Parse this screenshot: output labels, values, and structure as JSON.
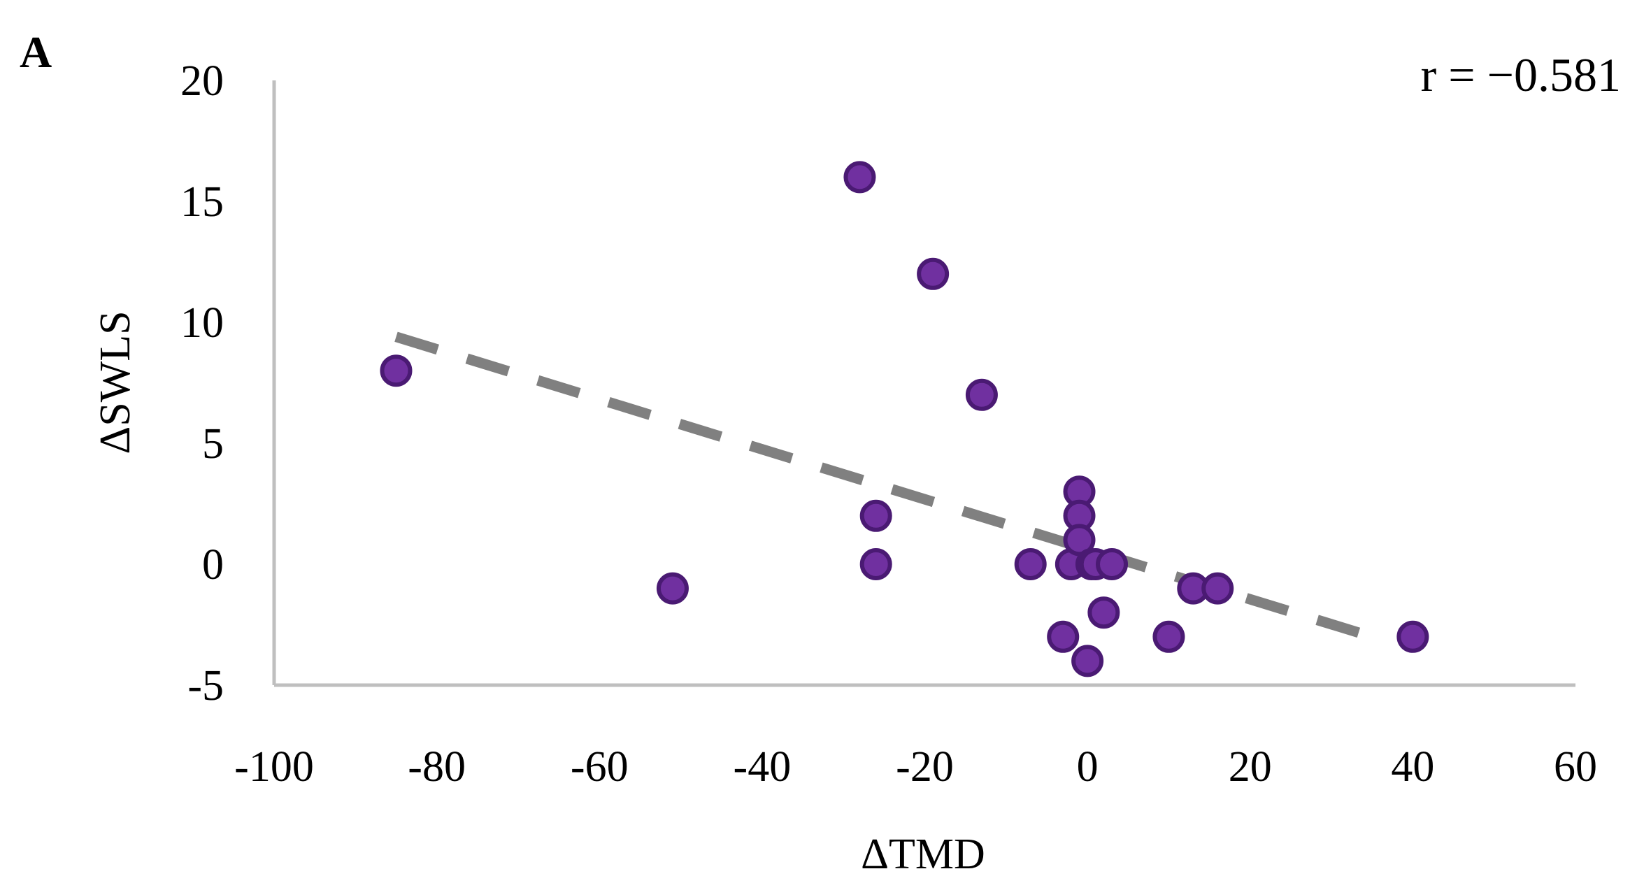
{
  "panel_label": "A",
  "annotation": "r = −0.581",
  "colors": {
    "point_fill": "#7030a0",
    "point_stroke": "#4a1a73",
    "trendline": "#808080",
    "axis": "#bfbfbf"
  },
  "chart_data": {
    "type": "scatter",
    "title": "",
    "xlabel": "ΔTMD",
    "ylabel": "ΔSWLS",
    "xlim": [
      -100,
      60
    ],
    "ylim": [
      -5,
      20
    ],
    "x_ticks": [
      -100,
      -80,
      -60,
      -40,
      -20,
      0,
      20,
      40,
      60
    ],
    "x_tick_labels": [
      "-100",
      "-80",
      "-60",
      "-40",
      "-20",
      "0",
      "20",
      "40",
      "60"
    ],
    "y_ticks": [
      -5,
      0,
      5,
      10,
      15,
      20
    ],
    "y_tick_labels": [
      "-5",
      "0",
      "5",
      "10",
      "15",
      "20"
    ],
    "grid": false,
    "series": [
      {
        "points": [
          {
            "x": -85,
            "y": 8
          },
          {
            "x": -51,
            "y": -1
          },
          {
            "x": -28,
            "y": 16
          },
          {
            "x": -26,
            "y": 2
          },
          {
            "x": -26,
            "y": 0
          },
          {
            "x": -19,
            "y": 12
          },
          {
            "x": -13,
            "y": 7
          },
          {
            "x": -7,
            "y": 0
          },
          {
            "x": -3,
            "y": -3
          },
          {
            "x": -2,
            "y": 0
          },
          {
            "x": -1,
            "y": 3
          },
          {
            "x": -1,
            "y": 2
          },
          {
            "x": -1,
            "y": 1
          },
          {
            "x": 0,
            "y": -4
          },
          {
            "x": 0.5,
            "y": 0
          },
          {
            "x": 1,
            "y": 0
          },
          {
            "x": 2,
            "y": -2
          },
          {
            "x": 3,
            "y": 0
          },
          {
            "x": 10,
            "y": -3
          },
          {
            "x": 13,
            "y": -1
          },
          {
            "x": 16,
            "y": -1
          },
          {
            "x": 40,
            "y": -3
          }
        ]
      }
    ],
    "trendline": {
      "style": "dashed linear",
      "x_start": -85,
      "y_start": 9.4,
      "x_end": 35,
      "y_end": -3
    }
  }
}
